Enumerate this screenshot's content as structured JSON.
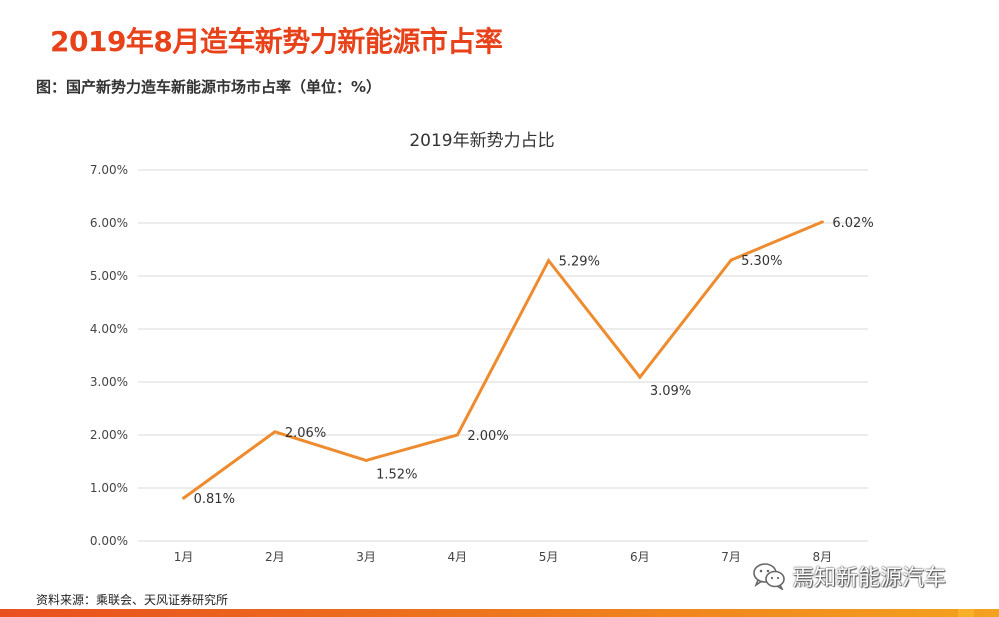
{
  "header": {
    "title": "2019年8月造车新势力新能源市占率",
    "caption": "图：国产新势力造车新能源市场市占率（单位：%）"
  },
  "footer": {
    "source": "资料来源：乘联会、天风证券研究所",
    "watermark": "焉知新能源汽车",
    "watermark_icon": "wechat-icon"
  },
  "colors": {
    "title": "#E8421A",
    "line": "#EE8B2E",
    "grid": "#D9D9D9"
  },
  "chart_data": {
    "type": "line",
    "title": "2019年新势力占比",
    "xlabel": "",
    "ylabel": "",
    "categories": [
      "1月",
      "2月",
      "3月",
      "4月",
      "5月",
      "6月",
      "7月",
      "8月"
    ],
    "series": [
      {
        "values": [
          0.81,
          2.06,
          1.52,
          2.0,
          5.29,
          3.09,
          5.3,
          6.02
        ]
      }
    ],
    "data_labels": [
      "0.81%",
      "2.06%",
      "1.52%",
      "2.00%",
      "5.29%",
      "3.09%",
      "5.30%",
      "6.02%"
    ],
    "ylim": [
      0,
      7
    ],
    "yticks": [
      {
        "value": 0,
        "label": "0.00%"
      },
      {
        "value": 1,
        "label": "1.00%"
      },
      {
        "value": 2,
        "label": "2.00%"
      },
      {
        "value": 3,
        "label": "3.00%"
      },
      {
        "value": 4,
        "label": "4.00%"
      },
      {
        "value": 5,
        "label": "5.00%"
      },
      {
        "value": 6,
        "label": "6.00%"
      },
      {
        "value": 7,
        "label": "7.00%"
      }
    ],
    "grid": true,
    "legend": "none"
  }
}
